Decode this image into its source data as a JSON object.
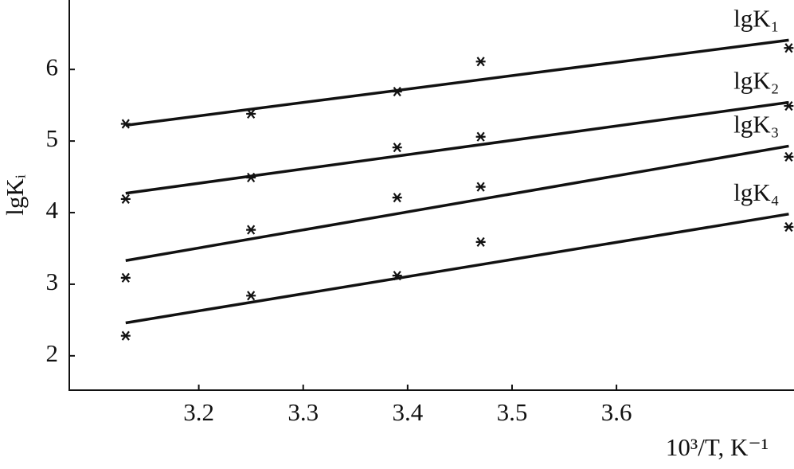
{
  "chart_data": {
    "type": "scatter",
    "x_label": "10³/T, K⁻¹",
    "y_label": "lgKᵢ",
    "x": [
      3.13,
      3.25,
      3.39,
      3.47,
      3.765
    ],
    "series": [
      {
        "name": "lgK₁",
        "color": "#111111",
        "values": [
          5.24,
          5.38,
          5.69,
          6.11,
          6.3
        ],
        "fit": [
          5.22,
          6.41
        ]
      },
      {
        "name": "lgK₂",
        "color": "#111111",
        "values": [
          4.19,
          4.49,
          4.91,
          5.06,
          5.49
        ],
        "fit": [
          4.27,
          5.54
        ]
      },
      {
        "name": "lgK₃",
        "color": "#111111",
        "values": [
          3.09,
          3.76,
          4.21,
          4.36,
          4.78
        ],
        "fit": [
          3.33,
          4.93
        ]
      },
      {
        "name": "lgK₄",
        "color": "#111111",
        "values": [
          2.28,
          2.84,
          3.12,
          3.59,
          3.8
        ],
        "fit": [
          2.46,
          3.98
        ]
      }
    ],
    "xlim": [
      3.076,
      3.77
    ],
    "ylim": [
      1.52,
      6.97
    ],
    "xticks": [
      3.2,
      3.3,
      3.4,
      3.5,
      3.6
    ],
    "yticks": [
      2,
      3,
      4,
      5,
      6
    ]
  }
}
